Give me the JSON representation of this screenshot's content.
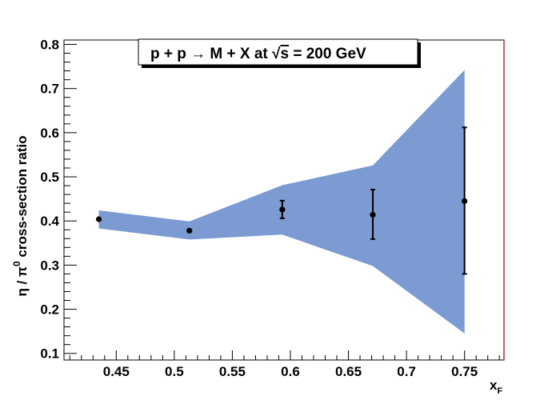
{
  "chart_data": {
    "type": "scatter",
    "title": "p + p → M + X at √s = 200 GeV",
    "title_parts": {
      "before_sqrt": "p + p → M + X at ",
      "sqrt_symbol": "√",
      "sqrt_arg": "s",
      "after_sqrt": " = 200 GeV"
    },
    "xlabel": {
      "main": "x",
      "sub": "F"
    },
    "ylabel": {
      "eta": "η",
      "slash": " / ",
      "pi": "π",
      "sup": "0",
      "rest": " cross-section ratio"
    },
    "xlim": [
      0.405,
      0.784
    ],
    "ylim": [
      0.085,
      0.81
    ],
    "x_ticks": [
      0.45,
      0.5,
      0.55,
      0.6,
      0.65,
      0.7,
      0.75
    ],
    "x_tick_labels": [
      "0.45",
      "0.5",
      "0.55",
      "0.6",
      "0.65",
      "0.7",
      "0.75"
    ],
    "y_ticks": [
      0.1,
      0.2,
      0.3,
      0.4,
      0.5,
      0.6,
      0.7,
      0.8
    ],
    "y_tick_labels": [
      "0.1",
      "0.2",
      "0.3",
      "0.4",
      "0.5",
      "0.6",
      "0.7",
      "0.8"
    ],
    "grid": false,
    "band": {
      "color": "#7b9bd2",
      "x": [
        0.435,
        0.513,
        0.593,
        0.671,
        0.75
      ],
      "upper": [
        0.424,
        0.399,
        0.481,
        0.526,
        0.742
      ],
      "lower": [
        0.383,
        0.358,
        0.369,
        0.298,
        0.145
      ]
    },
    "series": [
      {
        "color": "#000000",
        "x": [
          0.435,
          0.513,
          0.593,
          0.671,
          0.75
        ],
        "y": [
          0.404,
          0.378,
          0.426,
          0.414,
          0.445
        ],
        "yerr_low": [
          0.0,
          0.0,
          0.02,
          0.055,
          0.165
        ],
        "yerr_high": [
          0.0,
          0.0,
          0.02,
          0.057,
          0.167
        ]
      }
    ]
  }
}
